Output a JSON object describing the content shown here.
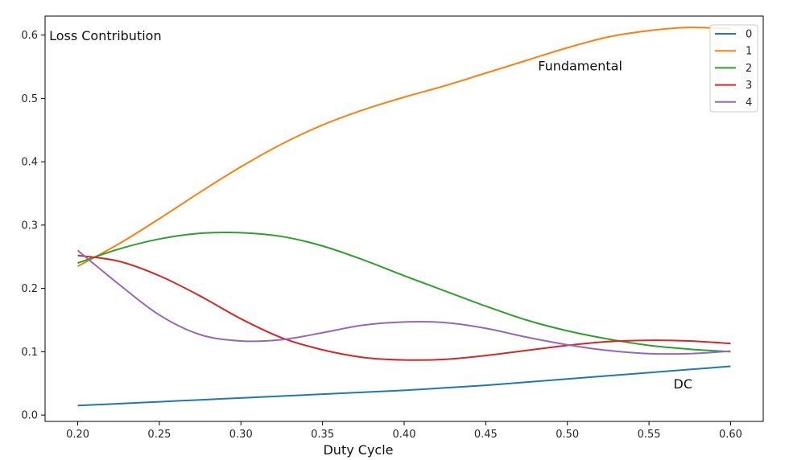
{
  "chart_data": {
    "type": "line",
    "title": "",
    "xlabel": "Duty Cycle",
    "ylabel": "",
    "xlim": [
      0.18,
      0.62
    ],
    "ylim": [
      -0.01,
      0.63
    ],
    "x_ticks": [
      "0.20",
      "0.25",
      "0.30",
      "0.35",
      "0.40",
      "0.45",
      "0.50",
      "0.55",
      "0.60"
    ],
    "y_ticks": [
      "0.0",
      "0.1",
      "0.2",
      "0.3",
      "0.4",
      "0.5",
      "0.6"
    ],
    "x_tick_values": [
      0.2,
      0.25,
      0.3,
      0.35,
      0.4,
      0.45,
      0.5,
      0.55,
      0.6
    ],
    "y_tick_values": [
      0.0,
      0.1,
      0.2,
      0.3,
      0.4,
      0.5,
      0.6
    ],
    "grid": false,
    "legend_position": "top-right",
    "x": [
      0.2,
      0.225,
      0.25,
      0.275,
      0.3,
      0.325,
      0.35,
      0.375,
      0.4,
      0.425,
      0.45,
      0.475,
      0.5,
      0.525,
      0.55,
      0.575,
      0.6
    ],
    "series": [
      {
        "name": "0",
        "color": "#1f77b4",
        "values": [
          0.015,
          0.018,
          0.021,
          0.024,
          0.027,
          0.03,
          0.033,
          0.036,
          0.039,
          0.043,
          0.047,
          0.052,
          0.057,
          0.062,
          0.067,
          0.072,
          0.077
        ]
      },
      {
        "name": "1",
        "color": "#ff7f0e",
        "values": [
          0.235,
          0.27,
          0.31,
          0.352,
          0.392,
          0.428,
          0.458,
          0.482,
          0.502,
          0.52,
          0.54,
          0.56,
          0.58,
          0.597,
          0.607,
          0.612,
          0.61
        ]
      },
      {
        "name": "2",
        "color": "#2ca02c",
        "values": [
          0.24,
          0.262,
          0.278,
          0.287,
          0.288,
          0.282,
          0.267,
          0.245,
          0.22,
          0.196,
          0.172,
          0.15,
          0.133,
          0.12,
          0.11,
          0.104,
          0.1
        ]
      },
      {
        "name": "3",
        "color": "#d62728",
        "values": [
          0.252,
          0.243,
          0.22,
          0.188,
          0.152,
          0.122,
          0.103,
          0.091,
          0.087,
          0.088,
          0.094,
          0.102,
          0.11,
          0.116,
          0.118,
          0.117,
          0.113
        ]
      },
      {
        "name": "4",
        "color": "#9467bd",
        "values": [
          0.26,
          0.207,
          0.158,
          0.127,
          0.117,
          0.119,
          0.13,
          0.142,
          0.147,
          0.146,
          0.137,
          0.123,
          0.111,
          0.102,
          0.097,
          0.097,
          0.101
        ]
      }
    ],
    "annotations": [
      {
        "text": "Loss Contribution",
        "x": 0.1825,
        "y": 0.592
      },
      {
        "text": "Fundamental",
        "x": 0.482,
        "y": 0.544
      },
      {
        "text": "DC",
        "x": 0.565,
        "y": 0.042
      }
    ]
  }
}
